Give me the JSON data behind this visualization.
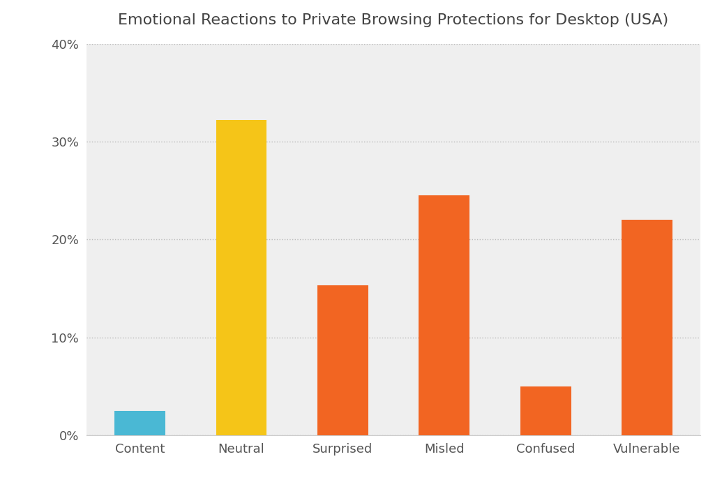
{
  "title": "Emotional Reactions to Private Browsing Protections for Desktop (USA)",
  "categories": [
    "Content",
    "Neutral",
    "Surprised",
    "Misled",
    "Confused",
    "Vulnerable"
  ],
  "values": [
    2.5,
    32.2,
    15.3,
    24.5,
    5.0,
    22.0
  ],
  "bar_colors": [
    "#4ab8d4",
    "#f5c518",
    "#f26522",
    "#f26522",
    "#f26522",
    "#f26522"
  ],
  "plot_bg_color": "#efefef",
  "fig_bg_color": "#ffffff",
  "ylim": [
    0,
    40
  ],
  "yticks": [
    0,
    10,
    20,
    30,
    40
  ],
  "title_fontsize": 16,
  "tick_fontsize": 13,
  "bar_width": 0.5,
  "grid_color": "#bbbbbb",
  "label_color": "#555555"
}
